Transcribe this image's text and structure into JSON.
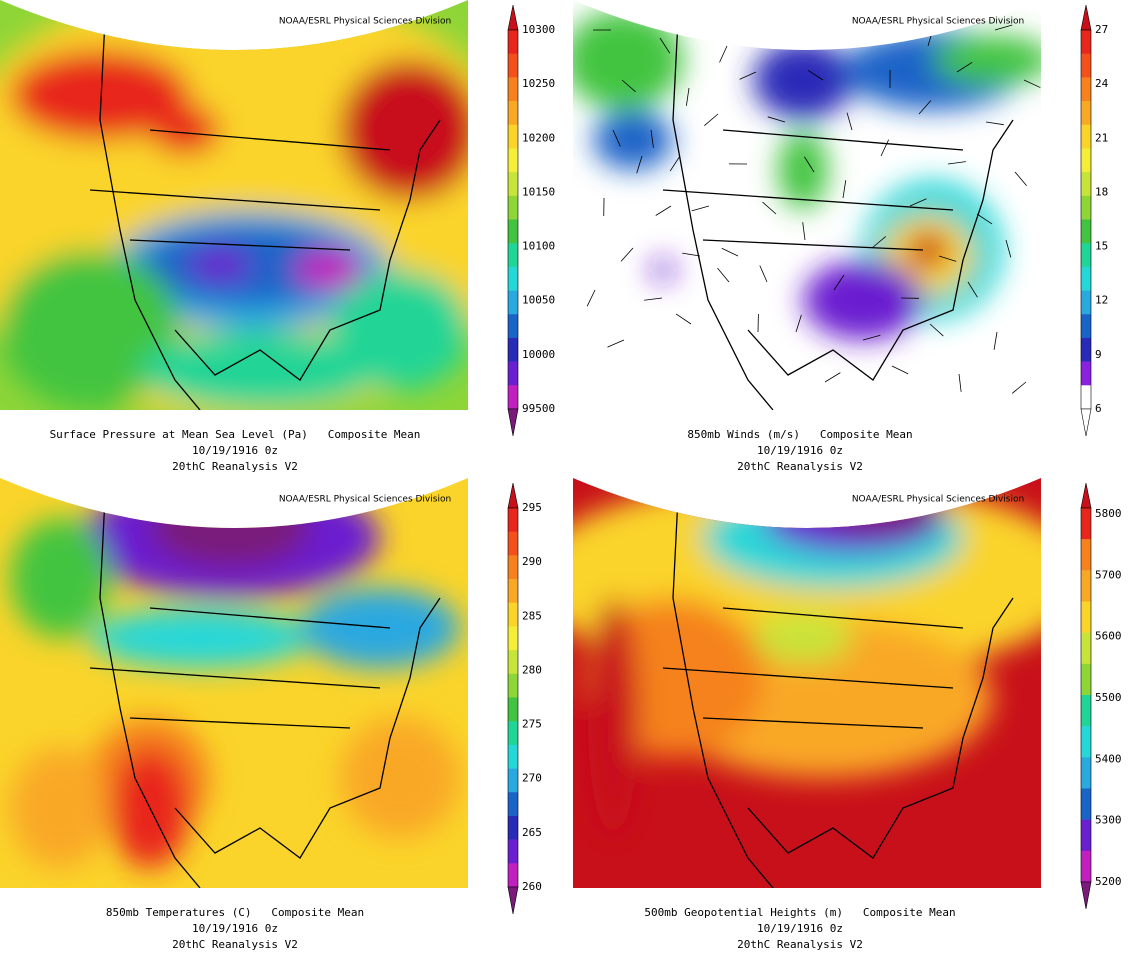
{
  "panels": [
    {
      "credit": "NOAA/ESRL Physical Sciences Division",
      "caption": [
        "Surface Pressure at Mean Sea Level (Pa)   Composite Mean",
        "10/19/1916 0z",
        "20thC Reanalysis V2"
      ],
      "colorbar": {
        "labels": [
          10300,
          10250,
          10200,
          10150,
          10100,
          10050,
          10000,
          99500
        ],
        "colors": [
          "#c8101a",
          "#e8261c",
          "#f4501c",
          "#f5821f",
          "#f9a825",
          "#fad42a",
          "#f4ee3a",
          "#c7e43a",
          "#8ed538",
          "#42c440",
          "#20d596",
          "#26d7d8",
          "#2aa8e0",
          "#1a64c8",
          "#2a2ab8",
          "#6b1fd0",
          "#c020c0",
          "#7a1a7a"
        ]
      }
    },
    {
      "credit": "NOAA/ESRL Physical Sciences Division",
      "caption": [
        "850mb Winds (m/s)   Composite Mean",
        "10/19/1916 0z",
        "20thC Reanalysis V2"
      ],
      "colorbar": {
        "labels": [
          27,
          24,
          21,
          18,
          15,
          12,
          9,
          6
        ],
        "colors": [
          "#c8101a",
          "#e8261c",
          "#f4501c",
          "#f5821f",
          "#f9a825",
          "#fad42a",
          "#f4ee3a",
          "#c7e43a",
          "#8ed538",
          "#42c440",
          "#20d596",
          "#26d7d8",
          "#2aa8e0",
          "#1a64c8",
          "#2a2ab8",
          "#8a20e0",
          "#ffffff",
          "#ffffff"
        ]
      }
    },
    {
      "credit": "NOAA/ESRL Physical Sciences Division",
      "caption": [
        "850mb Temperatures (C)   Composite Mean",
        "10/19/1916 0z",
        "20thC Reanalysis V2"
      ],
      "colorbar": {
        "labels": [
          295,
          290,
          285,
          280,
          275,
          270,
          265,
          260
        ],
        "colors": [
          "#c8101a",
          "#e8261c",
          "#f4501c",
          "#f5821f",
          "#f9a825",
          "#fad42a",
          "#f4ee3a",
          "#c7e43a",
          "#8ed538",
          "#42c440",
          "#20d596",
          "#26d7d8",
          "#2aa8e0",
          "#1a64c8",
          "#2a2ab8",
          "#6b1fd0",
          "#c020c0",
          "#7a1a7a"
        ]
      }
    },
    {
      "credit": "NOAA/ESRL Physical Sciences Division",
      "caption": [
        "500mb Geopotential Heights (m)   Composite Mean",
        "10/19/1916 0z",
        "20thC Reanalysis V2"
      ],
      "colorbar": {
        "labels": [
          5800,
          5700,
          5600,
          5500,
          5400,
          5300,
          5200
        ],
        "colors": [
          "#c8101a",
          "#e8261c",
          "#f5821f",
          "#f9a825",
          "#fad42a",
          "#c7e43a",
          "#8ed538",
          "#20d596",
          "#26d7d8",
          "#2aa8e0",
          "#1a64c8",
          "#6b1fd0",
          "#c020c0",
          "#7a1a7a"
        ]
      }
    }
  ]
}
